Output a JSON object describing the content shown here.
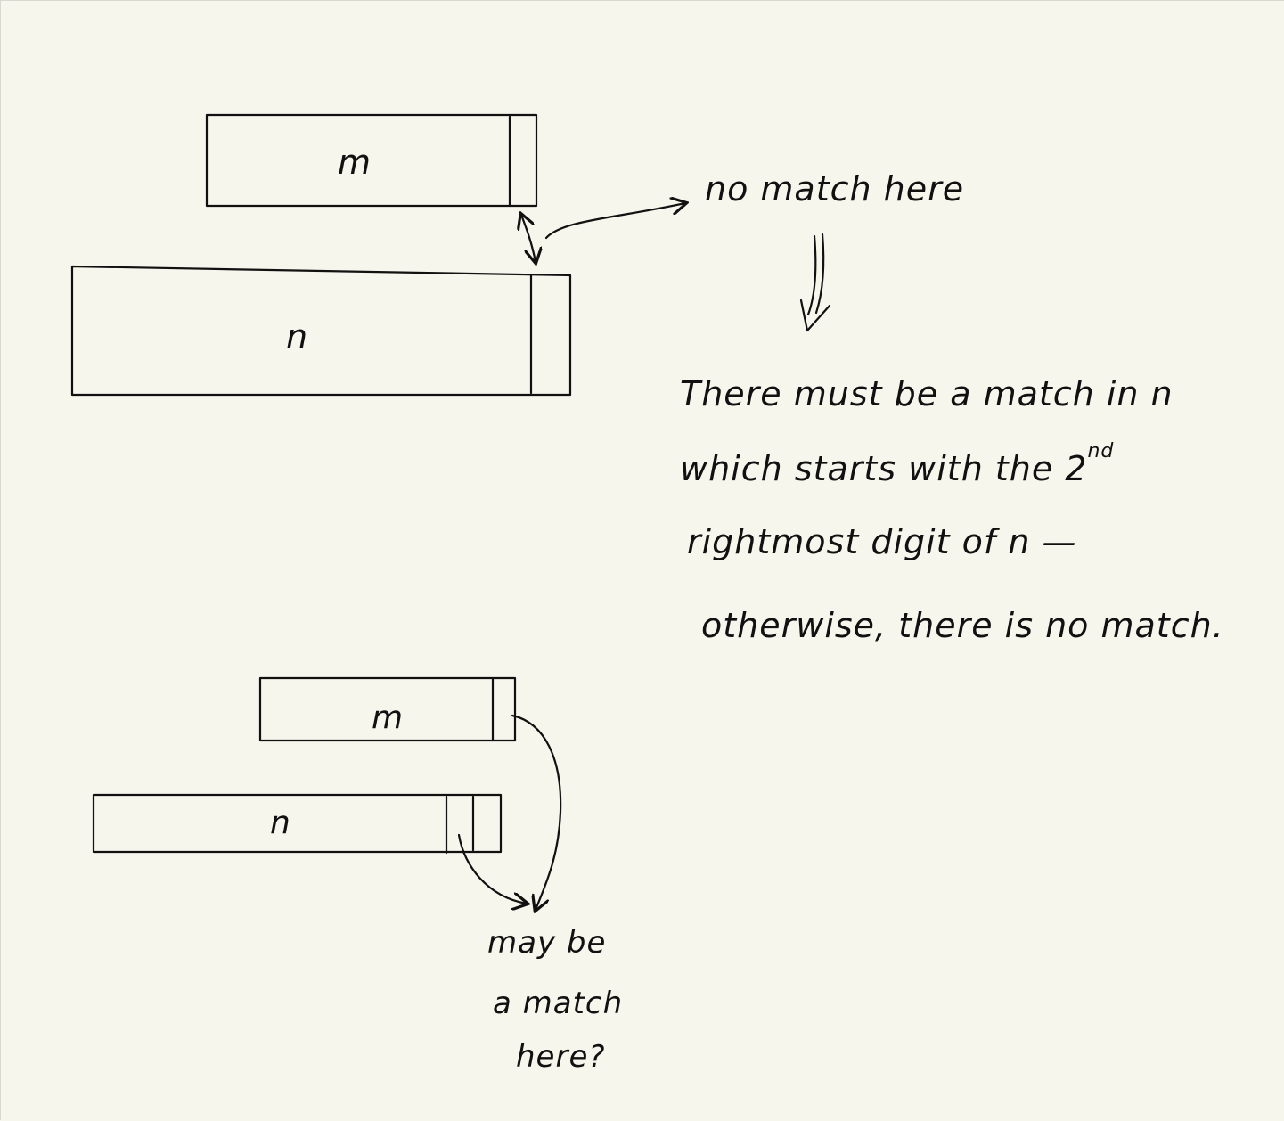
{
  "diagram": {
    "top": {
      "box_m_label": "m",
      "box_n_label": "n",
      "annotation": "no match here",
      "explanation_line1": "There must be a match in n",
      "explanation_line2": "which starts with the 2",
      "explanation_line2_sup": "nd",
      "explanation_line3": "rightmost digit of n —",
      "explanation_line4": "otherwise, there is no match."
    },
    "bottom": {
      "box_m_label": "m",
      "box_n_label": "n",
      "question_line1": "may be",
      "question_line2": "a match",
      "question_line3": "here?"
    }
  }
}
